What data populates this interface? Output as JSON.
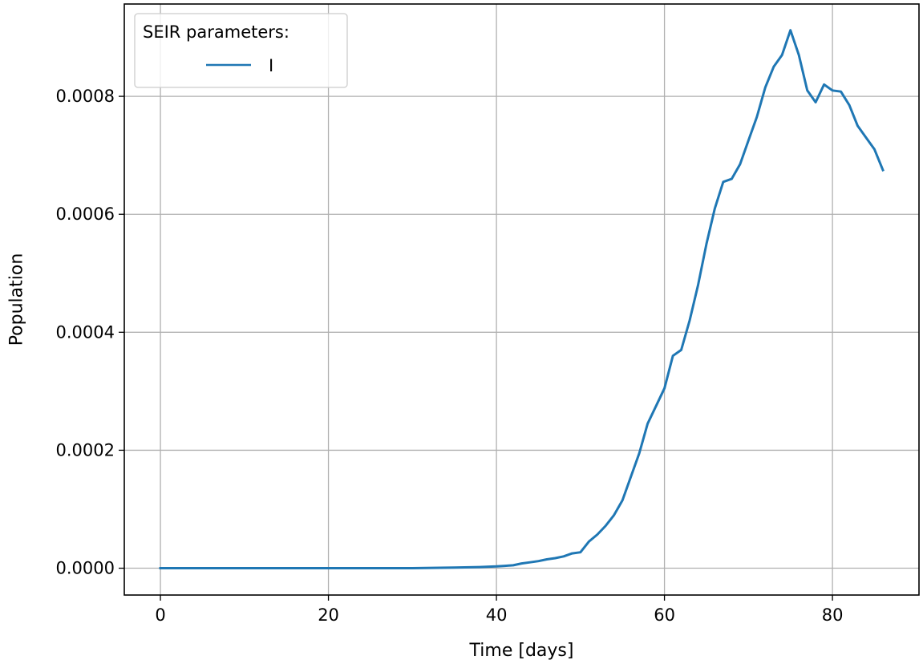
{
  "chart_data": {
    "type": "line",
    "title": "",
    "xlabel": "Time [days]",
    "ylabel": "Population",
    "xlim": [
      -4.3,
      90.3
    ],
    "ylim": [
      -4.55e-05,
      0.0009565
    ],
    "x_ticks": [
      0,
      20,
      40,
      60,
      80
    ],
    "x_tick_labels": [
      "0",
      "20",
      "40",
      "60",
      "80"
    ],
    "y_ticks": [
      0,
      0.0002,
      0.0004,
      0.0006,
      0.0008
    ],
    "y_tick_labels": [
      "0.0000",
      "0.0002",
      "0.0004",
      "0.0006",
      "0.0008"
    ],
    "grid": true,
    "legend": {
      "title": "SEIR parameters:",
      "placement": "top-left",
      "entries": [
        "I"
      ]
    },
    "series": [
      {
        "name": "I",
        "color": "#1f77b4",
        "x": [
          0,
          5,
          10,
          15,
          20,
          25,
          30,
          35,
          38,
          40,
          41,
          42,
          43,
          44,
          45,
          46,
          47,
          48,
          49,
          50,
          51,
          52,
          53,
          54,
          55,
          56,
          57,
          58,
          59,
          60,
          61,
          62,
          63,
          64,
          65,
          66,
          67,
          68,
          69,
          70,
          71,
          72,
          73,
          74,
          75,
          76,
          77,
          78,
          79,
          80,
          81,
          82,
          83,
          84,
          85,
          86
        ],
        "y": [
          0,
          0,
          0,
          0,
          0,
          0,
          0,
          1e-06,
          2e-06,
          3e-06,
          4e-06,
          5e-06,
          8e-06,
          1e-05,
          1.2e-05,
          1.5e-05,
          1.7e-05,
          2e-05,
          2.5e-05,
          2.7e-05,
          4.5e-05,
          5.7e-05,
          7.2e-05,
          9e-05,
          0.000115,
          0.000155,
          0.000195,
          0.000245,
          0.000275,
          0.000305,
          0.00036,
          0.00037,
          0.00042,
          0.00048,
          0.00055,
          0.00061,
          0.000655,
          0.00066,
          0.000685,
          0.000725,
          0.000765,
          0.000815,
          0.00085,
          0.00087,
          0.000912,
          0.00087,
          0.00081,
          0.00079,
          0.00082,
          0.00081,
          0.000808,
          0.000785,
          0.00075,
          0.00073,
          0.00071,
          0.000675
        ]
      }
    ]
  }
}
